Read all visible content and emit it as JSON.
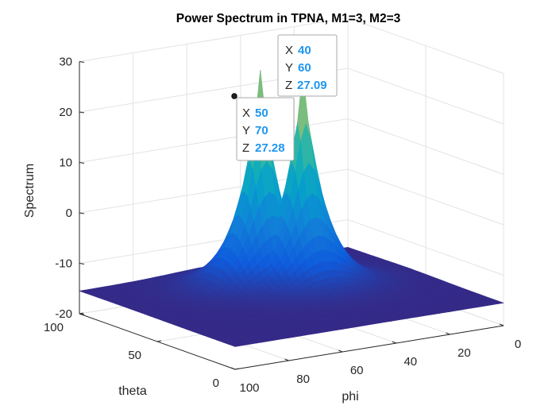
{
  "chart_data": {
    "type": "surface",
    "title": "Power Spectrum in TPNA, M1=3, M2=3",
    "xlabel": "phi",
    "ylabel": "theta",
    "zlabel": "Spectrum",
    "xlim": [
      0,
      100
    ],
    "ylim": [
      0,
      100
    ],
    "zlim": [
      -20,
      30
    ],
    "x_ticks": [
      0,
      20,
      40,
      60,
      80,
      100
    ],
    "y_ticks": [
      0,
      50,
      100
    ],
    "z_ticks": [
      -20,
      -10,
      0,
      10,
      20,
      30
    ],
    "grid": true,
    "colormap": "parula",
    "floor_level": -15.5,
    "peaks": [
      {
        "phi": 40,
        "theta": 60,
        "spectrum": 27.09
      },
      {
        "phi": 50,
        "theta": 70,
        "spectrum": 27.28
      }
    ],
    "datatips": [
      {
        "x_label": "X",
        "x": "40",
        "y_label": "Y",
        "y": "60",
        "z_label": "Z",
        "z": "27.09"
      },
      {
        "x_label": "X",
        "x": "50",
        "y_label": "Y",
        "y": "70",
        "z_label": "Z",
        "z": "27.28"
      }
    ]
  }
}
